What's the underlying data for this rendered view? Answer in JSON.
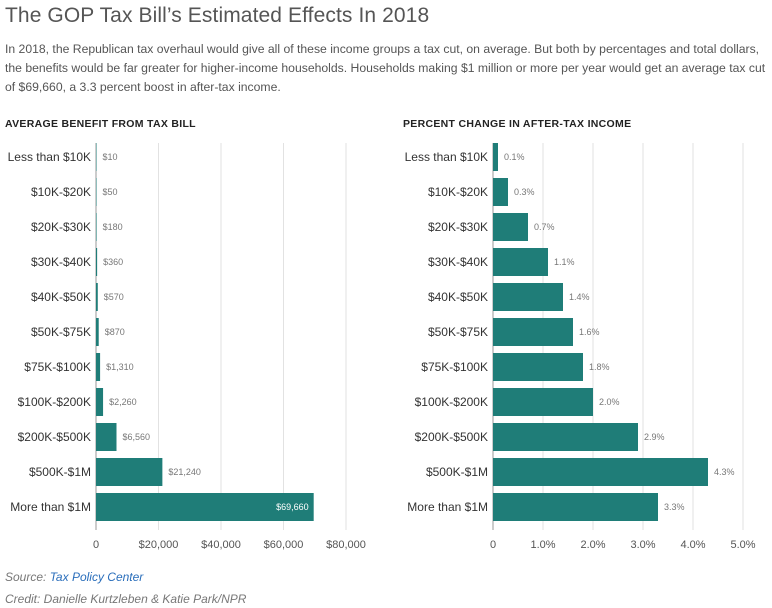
{
  "header": {
    "title": "The GOP Tax Bill’s Estimated Effects In 2018",
    "subtitle": "In 2018, the Republican tax overhaul would give all of these income groups a tax cut, on average. But both by percentages and total dollars, the benefits would be far greater for higher-income households. Households making $1 million or more per year would get an average tax cut of $69,660, a 3.3 percent boost in after-tax income."
  },
  "footer": {
    "source_prefix": "Source:",
    "source_name": "Tax Policy Center",
    "credit": "Credit: Danielle Kurtzleben & Katie Park/NPR"
  },
  "colors": {
    "bar": "#1f7d78",
    "grid": "#e2e2e2",
    "axis": "#999999"
  },
  "chart_data": [
    {
      "type": "bar",
      "orientation": "horizontal",
      "title": "AVERAGE BENEFIT FROM TAX BILL",
      "categories": [
        "Less than $10K",
        "$10K-$20K",
        "$20K-$30K",
        "$30K-$40K",
        "$40K-$50K",
        "$50K-$75K",
        "$75K-$100K",
        "$100K-$200K",
        "$200K-$500K",
        "$500K-$1M",
        "More than $1M"
      ],
      "values": [
        10,
        50,
        180,
        360,
        570,
        870,
        1310,
        2260,
        6560,
        21240,
        69660
      ],
      "value_labels": [
        "$10",
        "$50",
        "$180",
        "$360",
        "$570",
        "$870",
        "$1,310",
        "$2,260",
        "$6,560",
        "$21,240",
        "$69,660"
      ],
      "xlim": [
        0,
        80000
      ],
      "xticks": [
        0,
        20000,
        40000,
        60000,
        80000
      ],
      "xtick_labels": [
        "0",
        "$20,000",
        "$40,000",
        "$60,000",
        "$80,000"
      ],
      "grid": true
    },
    {
      "type": "bar",
      "orientation": "horizontal",
      "title": "PERCENT CHANGE IN AFTER-TAX INCOME",
      "categories": [
        "Less than $10K",
        "$10K-$20K",
        "$20K-$30K",
        "$30K-$40K",
        "$40K-$50K",
        "$50K-$75K",
        "$75K-$100K",
        "$100K-$200K",
        "$200K-$500K",
        "$500K-$1M",
        "More than $1M"
      ],
      "values": [
        0.1,
        0.3,
        0.7,
        1.1,
        1.4,
        1.6,
        1.8,
        2.0,
        2.9,
        4.3,
        3.3
      ],
      "value_labels": [
        "0.1%",
        "0.3%",
        "0.7%",
        "1.1%",
        "1.4%",
        "1.6%",
        "1.8%",
        "2.0%",
        "2.9%",
        "4.3%",
        "3.3%"
      ],
      "xlim": [
        0,
        5
      ],
      "xticks": [
        0,
        1,
        2,
        3,
        4,
        5
      ],
      "xtick_labels": [
        "0",
        "1.0%",
        "2.0%",
        "3.0%",
        "4.0%",
        "5.0%"
      ],
      "grid": true
    }
  ]
}
